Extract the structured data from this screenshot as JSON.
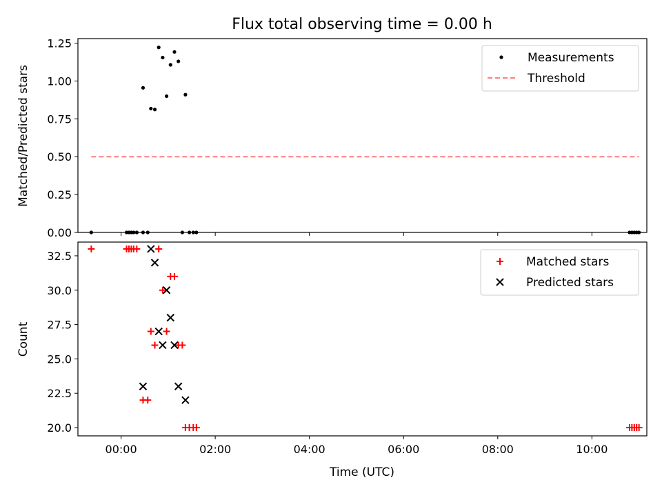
{
  "chart_data": [
    {
      "type": "scatter",
      "title": "Flux total observing time = 0.00 h",
      "ylabel": "Matched/Predicted stars",
      "xlabel": "",
      "xlim": [
        "2000-01-01 23:05",
        "2000-01-02 11:10"
      ],
      "ylim": [
        0,
        1.28
      ],
      "x_tick_labels": [],
      "y_ticks": [
        0.0,
        0.25,
        0.5,
        0.75,
        1.0,
        1.25
      ],
      "y_tick_labels": [
        "0.00",
        "0.25",
        "0.50",
        "0.75",
        "1.00",
        "1.25"
      ],
      "legend": {
        "placement": "top-right",
        "entries": [
          "Measurements",
          "Threshold"
        ]
      },
      "series": [
        {
          "name": "Measurements",
          "marker": "dot",
          "color": "#000000",
          "points": [
            {
              "x": "2000-01-01 23:22",
              "y": 0.0
            },
            {
              "x": "2000-01-02 00:07",
              "y": 0.0
            },
            {
              "x": "2000-01-02 00:10",
              "y": 0.0
            },
            {
              "x": "2000-01-02 00:13",
              "y": 0.0
            },
            {
              "x": "2000-01-02 00:16",
              "y": 0.0
            },
            {
              "x": "2000-01-02 00:20",
              "y": 0.0
            },
            {
              "x": "2000-01-02 00:28",
              "y": 0.0
            },
            {
              "x": "2000-01-02 00:34",
              "y": 0.0
            },
            {
              "x": "2000-01-02 00:28",
              "y": 0.955
            },
            {
              "x": "2000-01-02 00:38",
              "y": 0.818
            },
            {
              "x": "2000-01-02 00:43",
              "y": 0.812
            },
            {
              "x": "2000-01-02 00:48",
              "y": 1.222
            },
            {
              "x": "2000-01-02 00:53",
              "y": 1.155
            },
            {
              "x": "2000-01-02 00:58",
              "y": 0.9
            },
            {
              "x": "2000-01-02 01:03",
              "y": 1.107
            },
            {
              "x": "2000-01-02 01:08",
              "y": 1.192
            },
            {
              "x": "2000-01-02 01:13",
              "y": 1.13
            },
            {
              "x": "2000-01-02 01:22",
              "y": 0.91
            },
            {
              "x": "2000-01-02 01:18",
              "y": 0.0
            },
            {
              "x": "2000-01-02 01:27",
              "y": 0.0
            },
            {
              "x": "2000-01-02 01:32",
              "y": 0.0
            },
            {
              "x": "2000-01-02 01:36",
              "y": 0.0
            },
            {
              "x": "2000-01-02 10:48",
              "y": 0.0
            },
            {
              "x": "2000-01-02 10:51",
              "y": 0.0
            },
            {
              "x": "2000-01-02 10:54",
              "y": 0.0
            },
            {
              "x": "2000-01-02 10:57",
              "y": 0.0
            },
            {
              "x": "2000-01-02 11:00",
              "y": 0.0
            }
          ]
        },
        {
          "name": "Threshold",
          "style": "dashed-line",
          "color": "#ff7f7f",
          "points": [
            {
              "x": "2000-01-01 23:22",
              "y": 0.5
            },
            {
              "x": "2000-01-02 11:00",
              "y": 0.5
            }
          ]
        }
      ]
    },
    {
      "type": "scatter",
      "title": "",
      "ylabel": "Count",
      "xlabel": "Time (UTC)",
      "xlim": [
        "2000-01-01 23:05",
        "2000-01-02 11:10"
      ],
      "ylim": [
        19.4,
        33.5
      ],
      "x_ticks": [
        "2000-01-02 00:00",
        "2000-01-02 02:00",
        "2000-01-02 04:00",
        "2000-01-02 06:00",
        "2000-01-02 08:00",
        "2000-01-02 10:00"
      ],
      "x_tick_labels": [
        "00:00",
        "02:00",
        "04:00",
        "06:00",
        "08:00",
        "10:00"
      ],
      "y_ticks": [
        20.0,
        22.5,
        25.0,
        27.5,
        30.0,
        32.5
      ],
      "y_tick_labels": [
        "20.0",
        "22.5",
        "25.0",
        "27.5",
        "30.0",
        "32.5"
      ],
      "legend": {
        "placement": "top-right",
        "entries": [
          "Matched stars",
          "Predicted stars"
        ]
      },
      "series": [
        {
          "name": "Matched stars",
          "marker": "plus",
          "color": "#ff0000",
          "points": [
            {
              "x": "2000-01-01 23:22",
              "y": 33
            },
            {
              "x": "2000-01-02 00:07",
              "y": 33
            },
            {
              "x": "2000-01-02 00:10",
              "y": 33
            },
            {
              "x": "2000-01-02 00:13",
              "y": 33
            },
            {
              "x": "2000-01-02 00:16",
              "y": 33
            },
            {
              "x": "2000-01-02 00:20",
              "y": 33
            },
            {
              "x": "2000-01-02 00:48",
              "y": 33
            },
            {
              "x": "2000-01-02 00:28",
              "y": 22
            },
            {
              "x": "2000-01-02 00:34",
              "y": 22
            },
            {
              "x": "2000-01-02 00:38",
              "y": 27
            },
            {
              "x": "2000-01-02 00:43",
              "y": 26
            },
            {
              "x": "2000-01-02 00:53",
              "y": 30
            },
            {
              "x": "2000-01-02 00:58",
              "y": 27
            },
            {
              "x": "2000-01-02 01:03",
              "y": 31
            },
            {
              "x": "2000-01-02 01:08",
              "y": 31
            },
            {
              "x": "2000-01-02 01:13",
              "y": 26
            },
            {
              "x": "2000-01-02 01:18",
              "y": 26
            },
            {
              "x": "2000-01-02 01:22",
              "y": 20
            },
            {
              "x": "2000-01-02 01:27",
              "y": 20
            },
            {
              "x": "2000-01-02 01:32",
              "y": 20
            },
            {
              "x": "2000-01-02 01:36",
              "y": 20
            },
            {
              "x": "2000-01-02 10:48",
              "y": 20
            },
            {
              "x": "2000-01-02 10:51",
              "y": 20
            },
            {
              "x": "2000-01-02 10:54",
              "y": 20
            },
            {
              "x": "2000-01-02 10:57",
              "y": 20
            },
            {
              "x": "2000-01-02 11:00",
              "y": 20
            }
          ]
        },
        {
          "name": "Predicted stars",
          "marker": "x",
          "color": "#000000",
          "points": [
            {
              "x": "2000-01-02 00:28",
              "y": 23
            },
            {
              "x": "2000-01-02 00:38",
              "y": 33
            },
            {
              "x": "2000-01-02 00:43",
              "y": 32
            },
            {
              "x": "2000-01-02 00:48",
              "y": 27
            },
            {
              "x": "2000-01-02 00:53",
              "y": 26
            },
            {
              "x": "2000-01-02 00:58",
              "y": 30
            },
            {
              "x": "2000-01-02 01:03",
              "y": 28
            },
            {
              "x": "2000-01-02 01:08",
              "y": 26
            },
            {
              "x": "2000-01-02 01:13",
              "y": 23
            },
            {
              "x": "2000-01-02 01:22",
              "y": 22
            }
          ]
        }
      ]
    }
  ]
}
